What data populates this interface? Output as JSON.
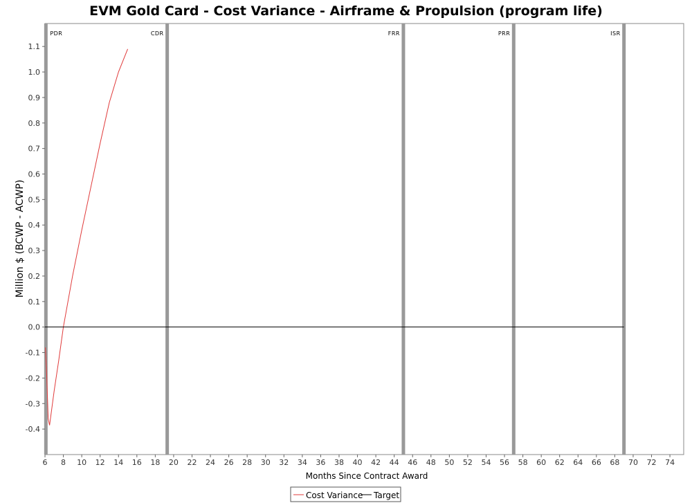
{
  "chart_data": {
    "type": "line",
    "title": "EVM Gold Card - Cost Variance - Airframe & Propulsion (program life)",
    "xlabel": "Months Since Contract Award",
    "ylabel": "Million $ (BCWP - ACWP)",
    "xlim": [
      6,
      75.5
    ],
    "ylim": [
      -0.5,
      1.19
    ],
    "x_ticks": [
      6,
      8,
      10,
      12,
      14,
      16,
      18,
      20,
      22,
      24,
      26,
      28,
      30,
      32,
      34,
      36,
      38,
      40,
      42,
      44,
      46,
      48,
      50,
      52,
      54,
      56,
      58,
      60,
      62,
      64,
      66,
      68,
      70,
      72,
      74
    ],
    "y_ticks": [
      1.1,
      1.0,
      0.9,
      0.8,
      0.7,
      0.6,
      0.5,
      0.4,
      0.3,
      0.2,
      0.1,
      0.0,
      -0.1,
      -0.2,
      -0.3,
      -0.4
    ],
    "y_tick_labels": [
      "1.1",
      "1.0",
      "0.9",
      "0.8",
      "0.7",
      "0.6",
      "0.5",
      "0.4",
      "0.3",
      "0.2",
      "0.1",
      "0.0",
      "-0.1",
      "-0.2",
      "-0.3",
      "-0.4"
    ],
    "grid": false,
    "legend_position": "bottom-center",
    "milestones": [
      {
        "label": "PDR",
        "x": 6.1
      },
      {
        "label": "CDR",
        "x": 19.3
      },
      {
        "label": "FRR",
        "x": 45
      },
      {
        "label": "PRR",
        "x": 57
      },
      {
        "label": "ISR",
        "x": 69
      }
    ],
    "series": [
      {
        "name": "Cost Variance",
        "color": "#e03a3a",
        "x": [
          6.05,
          6.2,
          6.35,
          6.5,
          7,
          7.5,
          8,
          8.5,
          9,
          10,
          11,
          12,
          13,
          14,
          15
        ],
        "y": [
          -0.08,
          -0.2,
          -0.36,
          -0.385,
          -0.25,
          -0.13,
          0.0,
          0.1,
          0.2,
          0.38,
          0.55,
          0.72,
          0.88,
          1.0,
          1.09
        ]
      },
      {
        "name": "Target",
        "color": "#000000",
        "x": [
          6,
          69
        ],
        "y": [
          0,
          0
        ]
      }
    ]
  }
}
